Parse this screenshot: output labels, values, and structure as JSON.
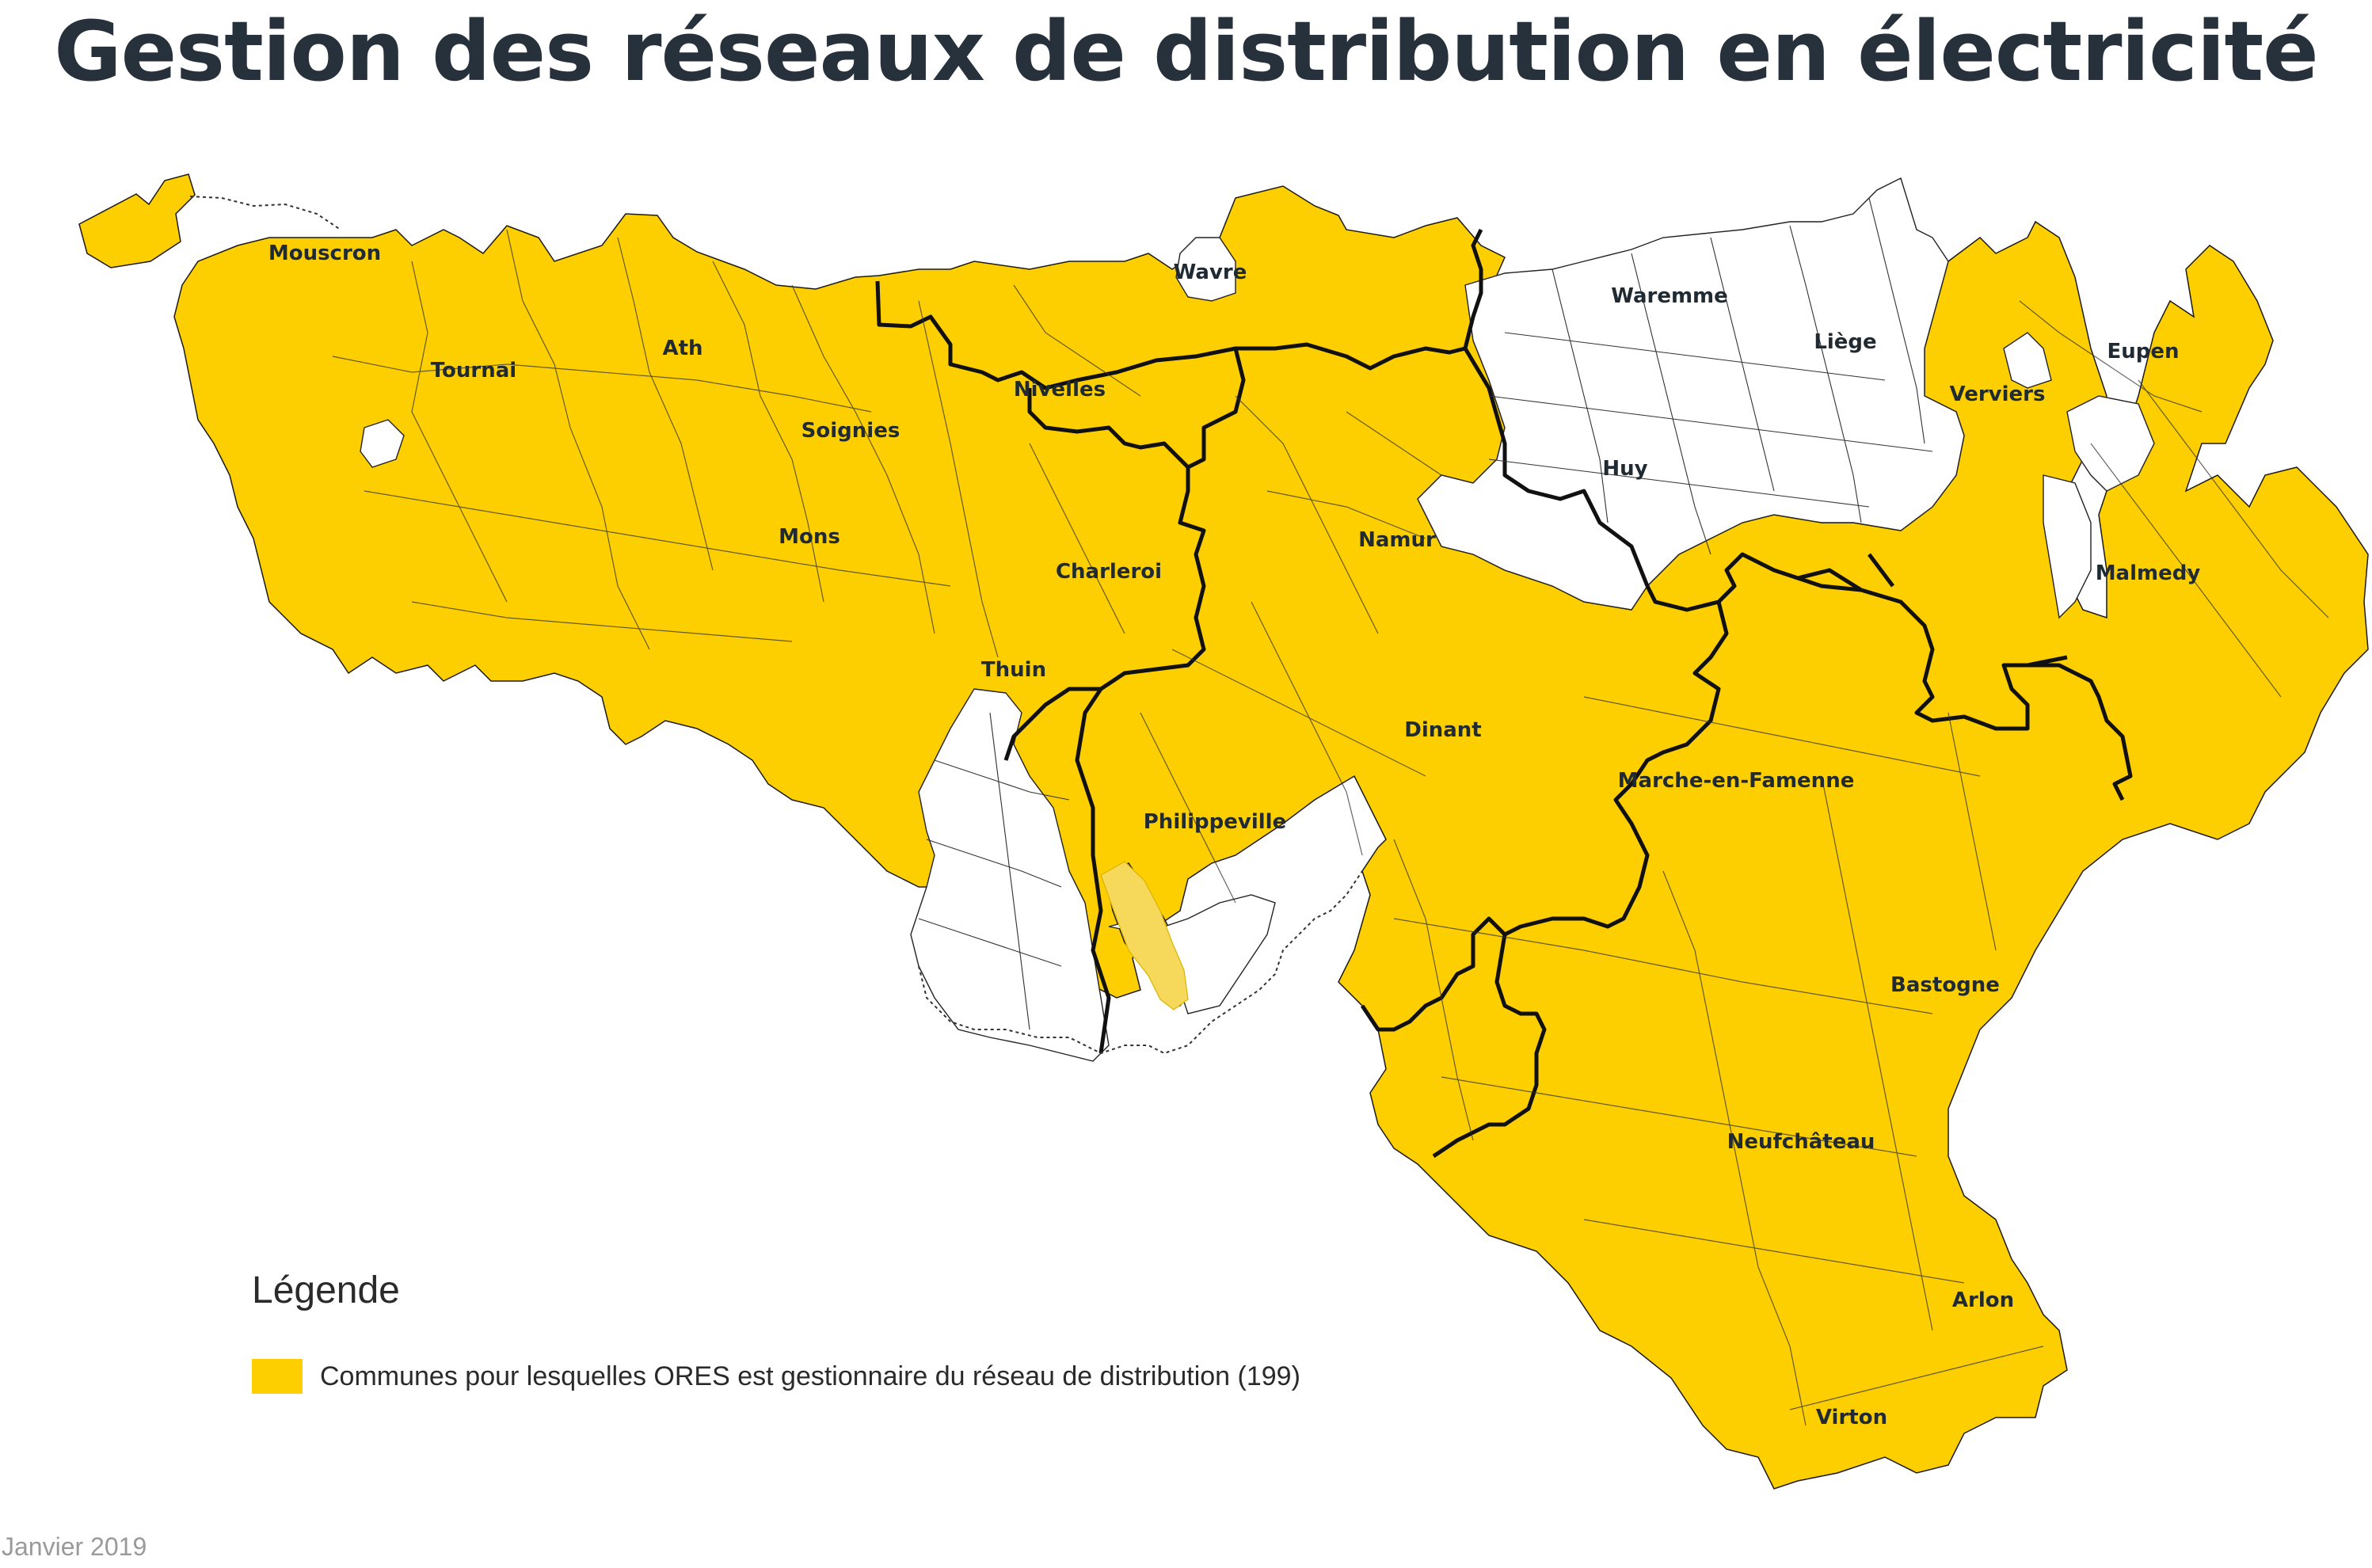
{
  "title": "Gestion des réseaux de distribution en électricité",
  "colors": {
    "ores": "#fecf00",
    "other": "#ffffff",
    "border": "#1a1a1a",
    "title": "#27313b"
  },
  "map": {
    "region_labels": [
      "Mouscron",
      "Tournai",
      "Ath",
      "Soignies",
      "Mons",
      "Nivelles",
      "Wavre",
      "Charleroi",
      "Thuin",
      "Namur",
      "Philippeville",
      "Dinant",
      "Waremme",
      "Liège",
      "Huy",
      "Verviers",
      "Eupen",
      "Malmedy",
      "Marche-en-Famenne",
      "Bastogne",
      "Neufchâteau",
      "Arlon",
      "Virton"
    ]
  },
  "legend": {
    "title": "Légende",
    "items": [
      {
        "label": "Communes pour lesquelles ORES est gestionnaire du réseau de distribution (199)",
        "color": "#fecf00"
      }
    ]
  },
  "footer": {
    "date": "Janvier 2019"
  }
}
